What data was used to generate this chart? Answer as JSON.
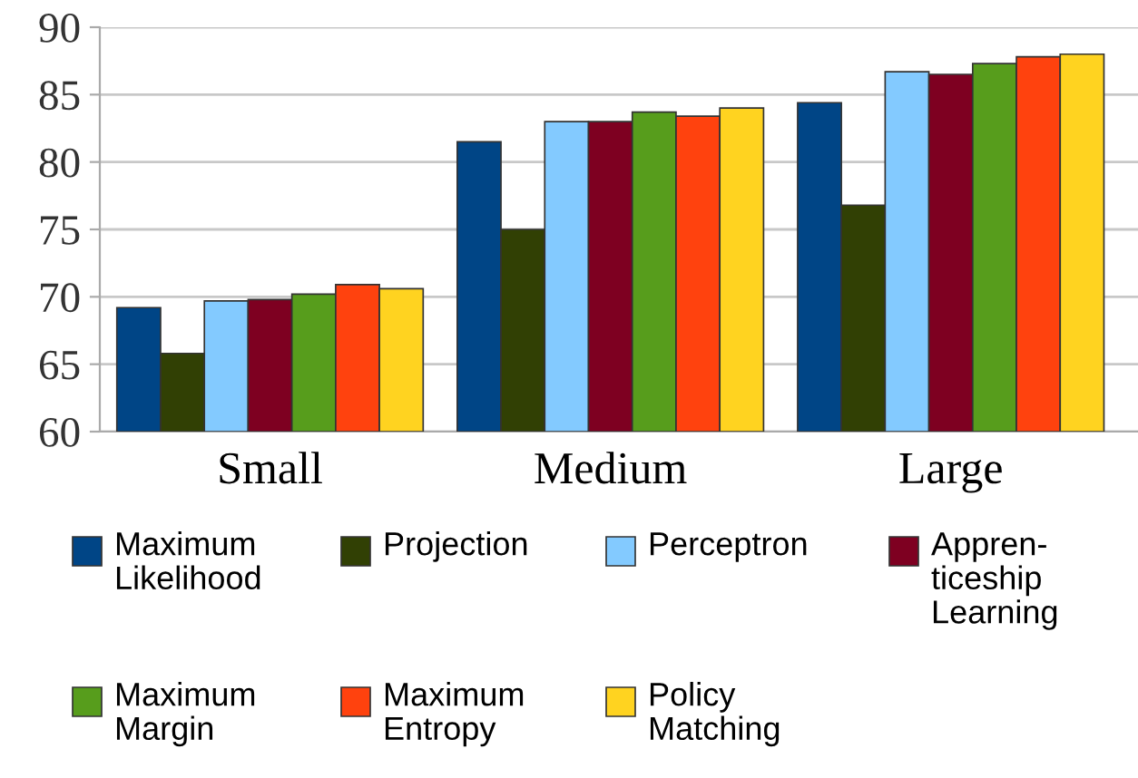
{
  "chart_data": {
    "type": "bar",
    "categories": [
      "Small",
      "Medium",
      "Large"
    ],
    "series": [
      {
        "name": "Maximum\nLikelihood",
        "color": "#004586",
        "values": [
          69.2,
          81.5,
          84.4
        ]
      },
      {
        "name": "Projection",
        "color": "#314004",
        "values": [
          65.8,
          75.0,
          76.8
        ]
      },
      {
        "name": "Perceptron",
        "color": "#83caff",
        "values": [
          69.7,
          83.0,
          86.7
        ]
      },
      {
        "name": "Appren-\nticeship\nLearning",
        "color": "#7e0021",
        "values": [
          69.8,
          83.0,
          86.5
        ]
      },
      {
        "name": "Maximum\nMargin",
        "color": "#579d1c",
        "values": [
          70.2,
          83.7,
          87.3
        ]
      },
      {
        "name": "Maximum\nEntropy",
        "color": "#ff420e",
        "values": [
          70.9,
          83.4,
          87.8
        ]
      },
      {
        "name": "Policy\nMatching",
        "color": "#ffd320",
        "values": [
          70.6,
          84.0,
          88.0
        ]
      }
    ],
    "ylim": [
      60,
      90
    ],
    "yticks": [
      60,
      65,
      70,
      75,
      80,
      85,
      90
    ],
    "grid": "y",
    "legend": "bottom"
  }
}
